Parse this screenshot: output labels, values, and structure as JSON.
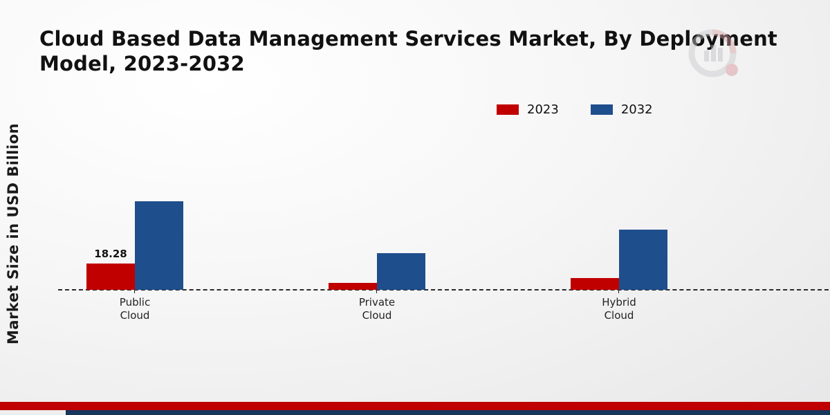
{
  "title": "Cloud Based Data Management Services Market, By Deployment Model, 2023-2032",
  "y_axis_label": "Market Size in USD Billion",
  "legend": {
    "items": [
      {
        "label": "2023",
        "color": "#c00000"
      },
      {
        "label": "2032",
        "color": "#1f4e8c"
      }
    ]
  },
  "colors": {
    "series_2023": "#c00000",
    "series_2032": "#1f4e8c",
    "footer_red": "#c00000",
    "footer_navy": "#16365c",
    "baseline": "#2a2a2a"
  },
  "chart_data": {
    "type": "bar",
    "categories": [
      "Public Cloud",
      "Private Cloud",
      "Hybrid Cloud"
    ],
    "series": [
      {
        "name": "2023",
        "color": "#c00000",
        "values": [
          18.28,
          5.0,
          8.2
        ]
      },
      {
        "name": "2032",
        "color": "#1f4e8c",
        "values": [
          61.5,
          25.5,
          42.0
        ]
      }
    ],
    "shown_value_labels": [
      {
        "series": "2023",
        "category": "Public Cloud",
        "text": "18.28"
      }
    ],
    "title": "Cloud Based Data Management Services Market, By Deployment Model, 2023-2032",
    "xlabel": "",
    "ylabel": "Market Size in USD Billion",
    "ylim": [
      0,
      130
    ],
    "grid": false,
    "legend_position": "top-right",
    "baseline_style": "dashed"
  }
}
